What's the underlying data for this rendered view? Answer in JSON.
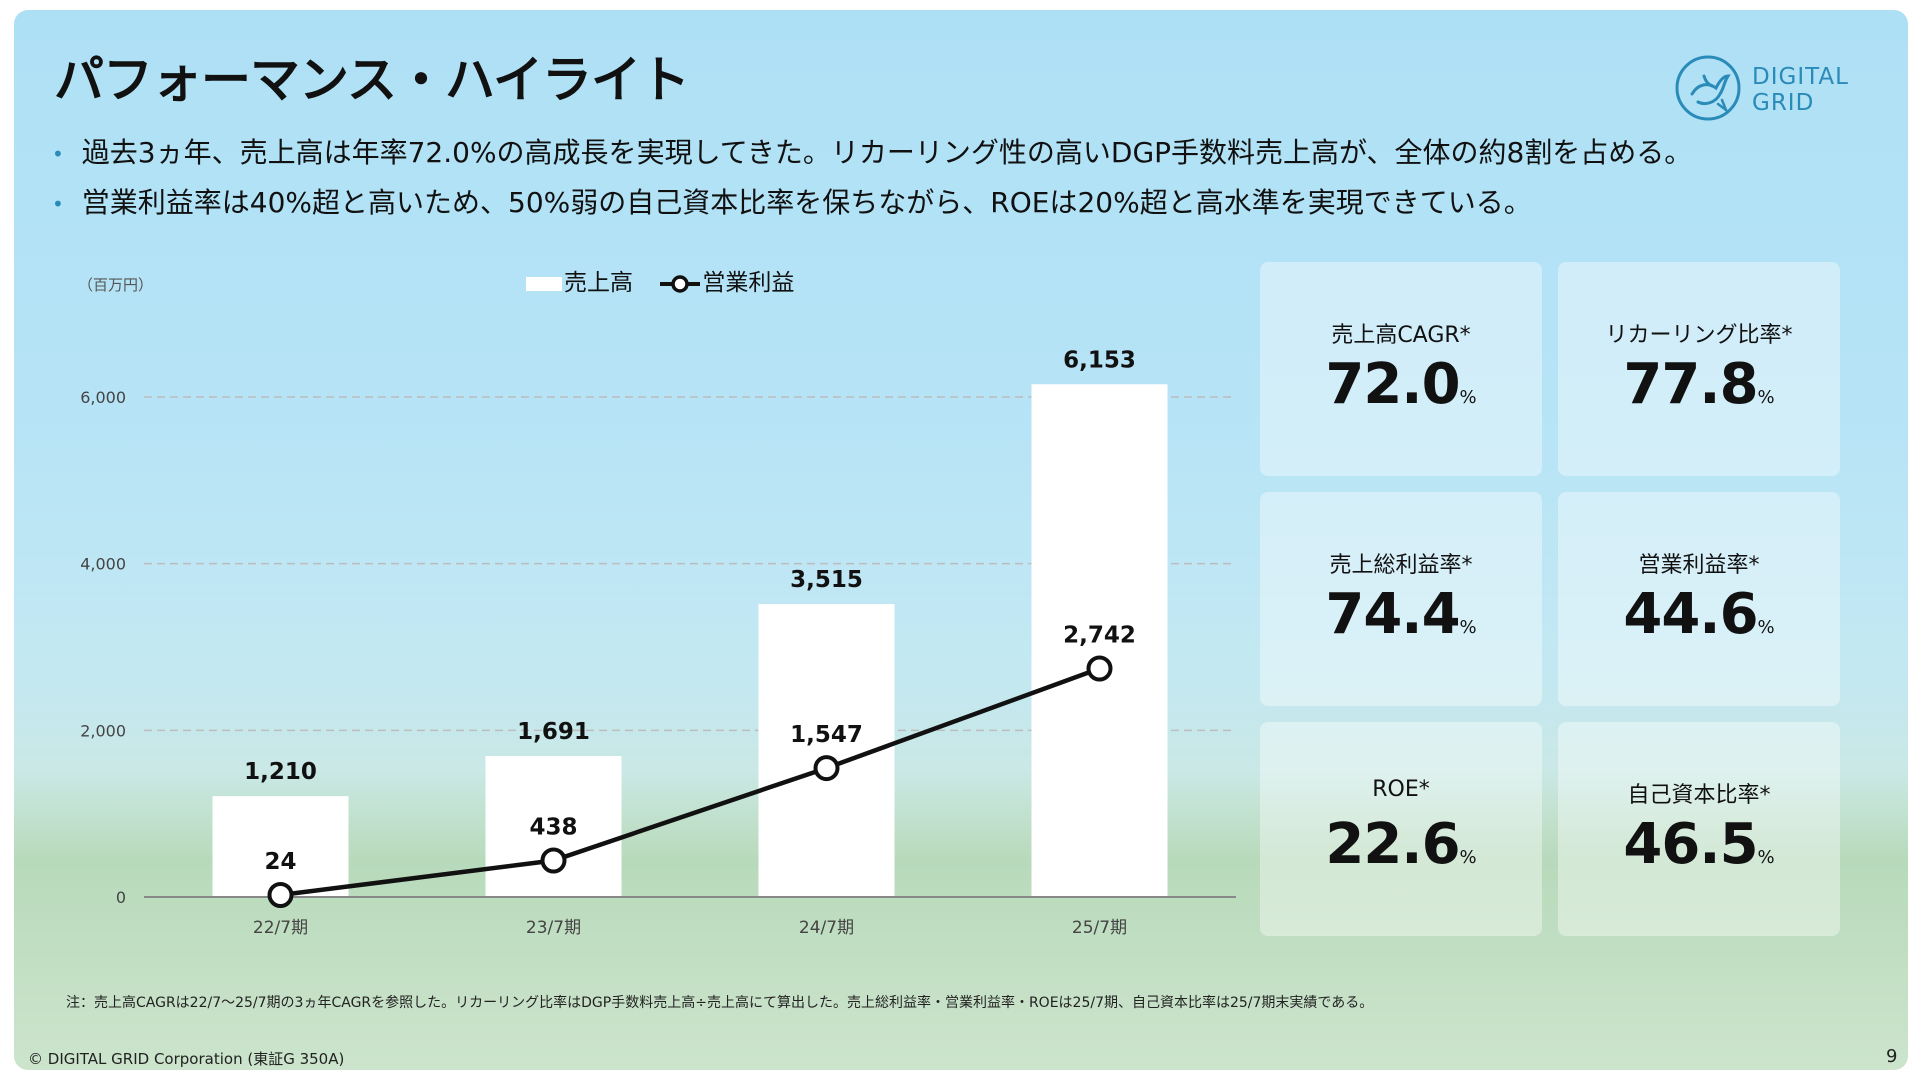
{
  "title": "パフォーマンス・ハイライト",
  "bullets": [
    "過去3ヵ年、売上高は年率72.0%の高成長を実現してきた。リカーリング性の高いDGP手数料売上高が、全体の約8割を占める。",
    "営業利益率は40%超と高いため、50%弱の自己資本比率を保ちながら、ROEは20%超と高水準を実現できている。"
  ],
  "logo": {
    "line1": "DIGITAL",
    "line2": "GRID",
    "color": "#2a8ab8"
  },
  "chart_data": {
    "type": "bar",
    "unit_label": "（百万円）",
    "categories": [
      "22/7期",
      "23/7期",
      "24/7期",
      "25/7期"
    ],
    "series": [
      {
        "name": "売上高",
        "kind": "bar",
        "values": [
          1210,
          1691,
          3515,
          6153
        ],
        "labels": [
          "1,210",
          "1,691",
          "3,515",
          "6,153"
        ],
        "color": "#ffffff"
      },
      {
        "name": "営業利益",
        "kind": "line",
        "values": [
          24,
          438,
          1547,
          2742
        ],
        "labels": [
          "24",
          "438",
          "1,547",
          "2,742"
        ],
        "color": "#111111"
      }
    ],
    "yticks": [
      0,
      2000,
      4000,
      6000
    ],
    "ytick_labels": [
      "0",
      "2,000",
      "4,000",
      "6,000"
    ],
    "ylim": [
      0,
      6000
    ],
    "grid": "dashed horizontal",
    "legend": "top-center"
  },
  "kpis": [
    {
      "label": "売上高CAGR*",
      "value": "72.0",
      "unit": "%"
    },
    {
      "label": "リカーリング比率*",
      "value": "77.8",
      "unit": "%"
    },
    {
      "label": "売上総利益率*",
      "value": "74.4",
      "unit": "%"
    },
    {
      "label": "営業利益率*",
      "value": "44.6",
      "unit": "%"
    },
    {
      "label": "ROE*",
      "value": "22.6",
      "unit": "%"
    },
    {
      "label": "自己資本比率*",
      "value": "46.5",
      "unit": "%"
    }
  ],
  "note": "注：売上高CAGRは22/7〜25/7期の3ヵ年CAGRを参照した。リカーリング比率はDGP手数料売上高÷売上高にて算出した。売上総利益率・営業利益率・ROEは25/7期、自己資本比率は25/7期末実績である。",
  "footer": "© DIGITAL GRID Corporation (東証G 350A)",
  "page_number": "9"
}
